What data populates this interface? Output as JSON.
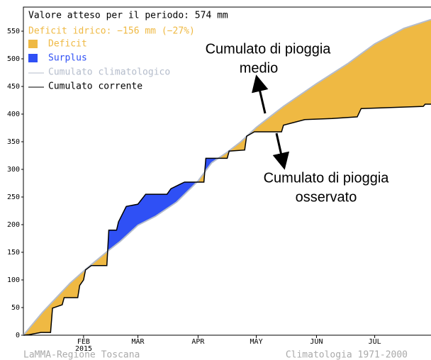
{
  "chart_data": {
    "type": "line",
    "info": "Valore atteso per il periodo: 574 mm",
    "deficit_text": "Deficit idrico: −156 mm (−27%)",
    "deficit_label": "Deficit",
    "deficit_color": "#efb943",
    "surplus_label": "Surplus",
    "surplus_color": "#2f50f5",
    "series": [
      {
        "name": "Cumulato climatologico",
        "color": "#b4bccb",
        "x": [
          0,
          10,
          17,
          24,
          32,
          43,
          50,
          59,
          68,
          79,
          90,
          97,
          105,
          112,
          120,
          134,
          151,
          167,
          181,
          196,
          210
        ],
        "values": [
          0,
          42,
          68,
          94,
          119,
          151,
          170,
          199,
          215,
          241,
          279,
          312,
          331,
          350,
          376,
          414,
          455,
          491,
          527,
          555,
          571
        ]
      },
      {
        "name": "Cumulato corrente",
        "color": "#000000",
        "x": [
          0,
          3,
          9,
          14,
          15,
          20,
          21,
          28,
          29,
          31,
          32,
          35,
          43,
          44,
          48,
          49,
          53,
          59,
          63,
          74,
          76,
          83,
          93,
          94,
          105,
          106,
          114,
          115,
          119,
          133,
          134,
          145,
          159,
          172,
          174,
          206,
          207,
          210
        ],
        "values": [
          0,
          1,
          5,
          5,
          49,
          55,
          68,
          68,
          90,
          100,
          118,
          126,
          126,
          190,
          190,
          205,
          233,
          237,
          255,
          255,
          265,
          277,
          277,
          320,
          320,
          333,
          335,
          360,
          368,
          368,
          380,
          390,
          392,
          395,
          410,
          414,
          418,
          418
        ]
      }
    ],
    "xlim": [
      0,
      210
    ],
    "xticks": [
      {
        "value": 31,
        "label": "FEB"
      },
      {
        "value": 59,
        "label": "MAR"
      },
      {
        "value": 90,
        "label": "APR"
      },
      {
        "value": 120,
        "label": "MAY"
      },
      {
        "value": 151,
        "label": "JUN"
      },
      {
        "value": 181,
        "label": "JUL"
      }
    ],
    "x_year_label": "2015",
    "ylim": [
      0,
      570
    ],
    "yticks": [
      0,
      50,
      100,
      150,
      200,
      250,
      300,
      350,
      400,
      450,
      500,
      550
    ],
    "annotations": [
      "Cumulato di pioggia",
      "medio",
      "Cumulato di pioggia",
      "osservato"
    ],
    "footer_left": "LaMMA-Regione Toscana",
    "footer_right": "Climatologia 1971-2000"
  }
}
